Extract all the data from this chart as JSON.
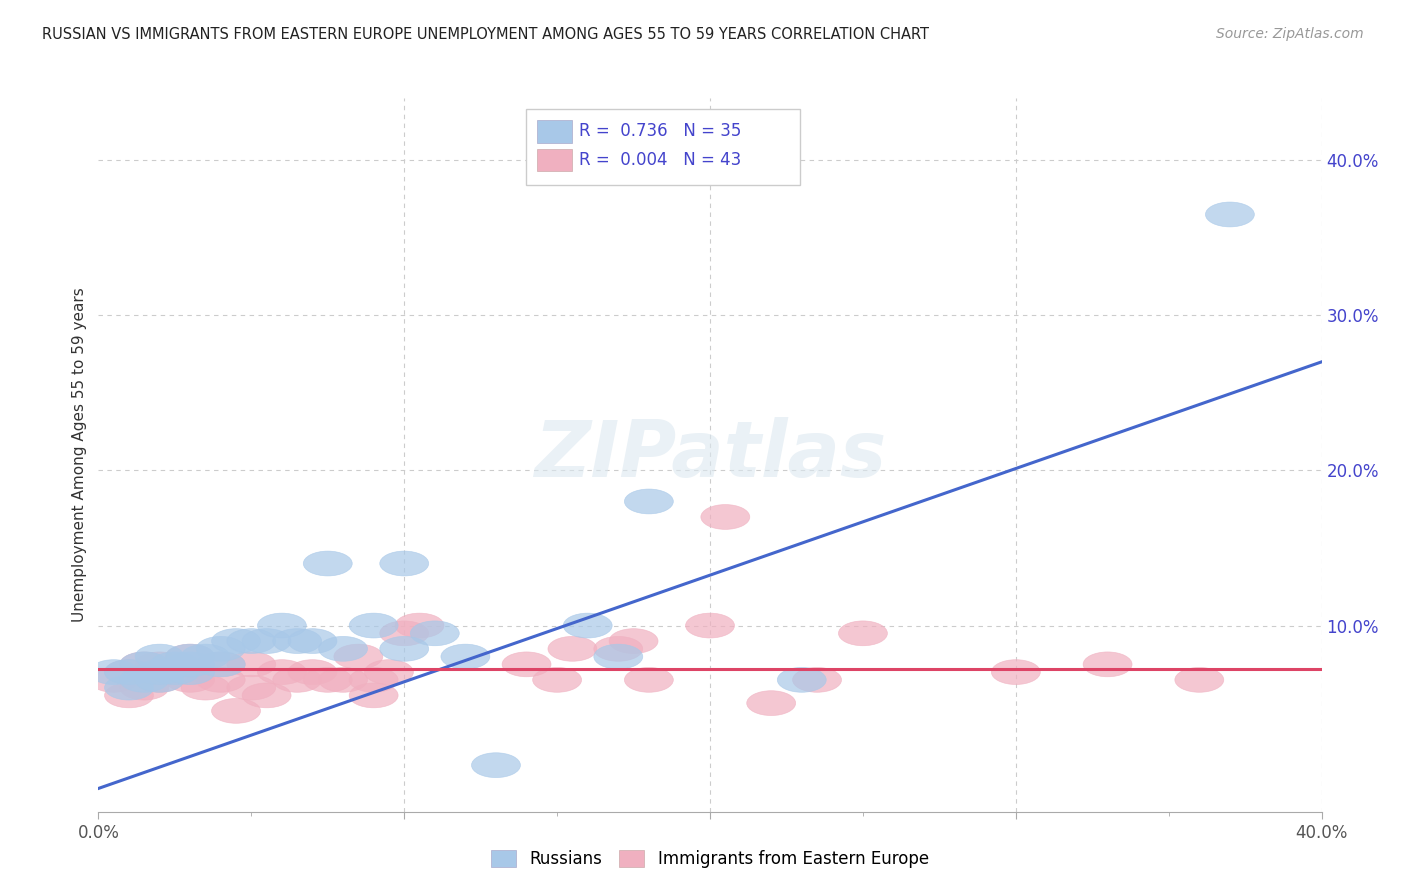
{
  "title": "RUSSIAN VS IMMIGRANTS FROM EASTERN EUROPE UNEMPLOYMENT AMONG AGES 55 TO 59 YEARS CORRELATION CHART",
  "source": "Source: ZipAtlas.com",
  "ylabel": "Unemployment Among Ages 55 to 59 years",
  "xlim": [
    0.0,
    0.4
  ],
  "ylim": [
    -0.02,
    0.44
  ],
  "plot_ylim": [
    -0.02,
    0.44
  ],
  "grid_color": "#cccccc",
  "background_color": "#ffffff",
  "watermark": "ZIPatlas",
  "legend_color": "#4444cc",
  "blue_color": "#a8c8e8",
  "pink_color": "#f0b0c0",
  "blue_line_color": "#4466cc",
  "pink_line_color": "#dd4466",
  "russians_x": [
    0.005,
    0.01,
    0.01,
    0.015,
    0.015,
    0.02,
    0.02,
    0.02,
    0.025,
    0.025,
    0.03,
    0.03,
    0.03,
    0.035,
    0.04,
    0.04,
    0.045,
    0.05,
    0.055,
    0.06,
    0.065,
    0.07,
    0.075,
    0.08,
    0.09,
    0.1,
    0.1,
    0.11,
    0.12,
    0.13,
    0.16,
    0.17,
    0.18,
    0.23,
    0.37
  ],
  "russians_y": [
    0.07,
    0.06,
    0.07,
    0.065,
    0.075,
    0.065,
    0.07,
    0.08,
    0.07,
    0.075,
    0.07,
    0.075,
    0.08,
    0.08,
    0.075,
    0.085,
    0.09,
    0.09,
    0.09,
    0.1,
    0.09,
    0.09,
    0.14,
    0.085,
    0.1,
    0.085,
    0.14,
    0.095,
    0.08,
    0.01,
    0.1,
    0.08,
    0.18,
    0.065,
    0.365
  ],
  "immigrants_x": [
    0.005,
    0.01,
    0.01,
    0.015,
    0.015,
    0.02,
    0.02,
    0.025,
    0.03,
    0.03,
    0.03,
    0.035,
    0.04,
    0.04,
    0.045,
    0.05,
    0.05,
    0.055,
    0.06,
    0.065,
    0.07,
    0.075,
    0.08,
    0.085,
    0.09,
    0.09,
    0.095,
    0.1,
    0.105,
    0.14,
    0.15,
    0.155,
    0.17,
    0.175,
    0.18,
    0.2,
    0.205,
    0.22,
    0.235,
    0.25,
    0.3,
    0.33,
    0.36
  ],
  "immigrants_y": [
    0.065,
    0.055,
    0.07,
    0.06,
    0.075,
    0.065,
    0.075,
    0.07,
    0.065,
    0.07,
    0.08,
    0.06,
    0.065,
    0.075,
    0.045,
    0.06,
    0.075,
    0.055,
    0.07,
    0.065,
    0.07,
    0.065,
    0.065,
    0.08,
    0.055,
    0.065,
    0.07,
    0.095,
    0.1,
    0.075,
    0.065,
    0.085,
    0.085,
    0.09,
    0.065,
    0.1,
    0.17,
    0.05,
    0.065,
    0.095,
    0.07,
    0.075,
    0.065
  ],
  "blue_trend_x": [
    0.0,
    0.4
  ],
  "blue_trend_y": [
    -0.005,
    0.27
  ],
  "pink_trend_x": [
    0.0,
    0.4
  ],
  "pink_trend_y": [
    0.072,
    0.072
  ]
}
